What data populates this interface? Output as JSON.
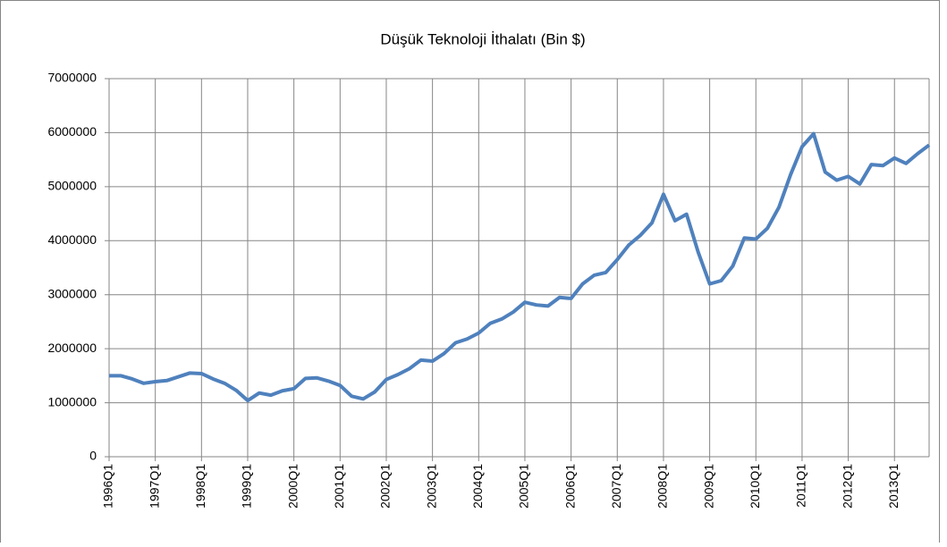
{
  "chart_data": {
    "type": "line",
    "title": "Düşük Teknoloji İthalatı (Bin $)",
    "categories": [
      "1996Q1",
      null,
      null,
      null,
      "1997Q1",
      null,
      null,
      null,
      "1998Q1",
      null,
      null,
      null,
      "1999Q1",
      null,
      null,
      null,
      "2000Q1",
      null,
      null,
      null,
      "2001Q1",
      null,
      null,
      null,
      "2002Q1",
      null,
      null,
      null,
      "2003Q1",
      null,
      null,
      null,
      "2004Q1",
      null,
      null,
      null,
      "2005Q1",
      null,
      null,
      null,
      "2006Q1",
      null,
      null,
      null,
      "2007Q1",
      null,
      null,
      null,
      "2008Q1",
      null,
      null,
      null,
      "2009Q1",
      null,
      null,
      null,
      "2010Q1",
      null,
      null,
      null,
      "2011Q1",
      null,
      null,
      null,
      "2012Q1",
      null,
      null,
      null,
      "2013Q1",
      null,
      null,
      null
    ],
    "values": [
      1500000,
      1500000,
      1440000,
      1360000,
      1390000,
      1410000,
      1480000,
      1550000,
      1540000,
      1440000,
      1360000,
      1230000,
      1040000,
      1180000,
      1140000,
      1220000,
      1260000,
      1450000,
      1460000,
      1400000,
      1320000,
      1120000,
      1070000,
      1200000,
      1430000,
      1520000,
      1630000,
      1790000,
      1770000,
      1910000,
      2110000,
      2180000,
      2290000,
      2470000,
      2550000,
      2680000,
      2860000,
      2810000,
      2790000,
      2950000,
      2930000,
      3200000,
      3360000,
      3410000,
      3650000,
      3920000,
      4100000,
      4330000,
      4860000,
      4370000,
      4490000,
      3790000,
      3200000,
      3260000,
      3530000,
      4050000,
      4030000,
      4230000,
      4620000,
      5220000,
      5740000,
      5980000,
      5270000,
      5120000,
      5190000,
      5050000,
      5410000,
      5390000,
      5530000,
      5430000,
      5610000,
      5770000
    ],
    "color": "#4f81bd",
    "ylim": [
      0,
      7000000
    ],
    "yticks": [
      0,
      1000000,
      2000000,
      3000000,
      4000000,
      5000000,
      6000000,
      7000000
    ],
    "grid": true
  }
}
